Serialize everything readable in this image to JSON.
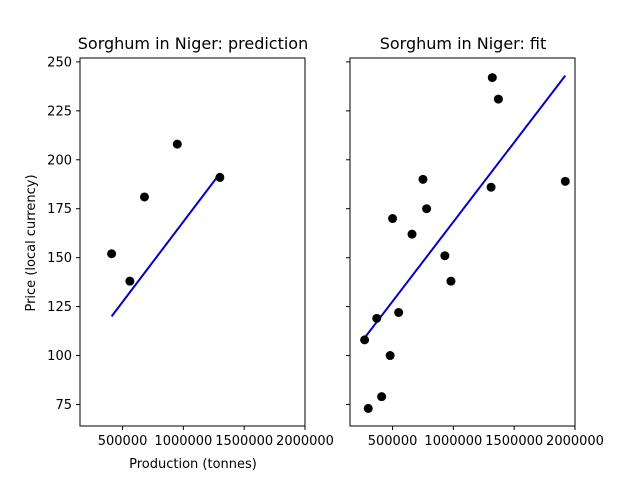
{
  "chart_data": [
    {
      "type": "scatter",
      "title": "Sorghum in Niger: prediction",
      "xlabel": "Production (tonnes)",
      "ylabel": "Price (local currency)",
      "xlim": [
        150000,
        2000000
      ],
      "ylim": [
        64,
        252
      ],
      "xticks": [
        500000,
        1000000,
        1500000,
        2000000
      ],
      "xtick_labels": [
        "500000",
        "1000000",
        "1500000",
        "2000000"
      ],
      "yticks": [
        75,
        100,
        125,
        150,
        175,
        200,
        225,
        250
      ],
      "ytick_labels": [
        "75",
        "100",
        "125",
        "150",
        "175",
        "200",
        "225",
        "250"
      ],
      "grid": false,
      "points": [
        {
          "x": 410000,
          "y": 152
        },
        {
          "x": 560000,
          "y": 138
        },
        {
          "x": 680000,
          "y": 181
        },
        {
          "x": 950000,
          "y": 208
        },
        {
          "x": 1300000,
          "y": 191
        }
      ],
      "fit_line": {
        "x": [
          410000,
          1300000
        ],
        "y": [
          120,
          193
        ],
        "color": "#0000cc"
      },
      "point_color": "#000000"
    },
    {
      "type": "scatter",
      "title": "Sorghum in Niger: fit",
      "xlabel": "",
      "ylabel": "",
      "xlim": [
        150000,
        2000000
      ],
      "ylim": [
        64,
        252
      ],
      "xticks": [
        500000,
        1000000,
        1500000,
        2000000
      ],
      "xtick_labels": [
        "500000",
        "1000000",
        "1500000",
        "2000000"
      ],
      "yticks": [
        75,
        100,
        125,
        150,
        175,
        200,
        225,
        250
      ],
      "ytick_labels": [],
      "grid": false,
      "points": [
        {
          "x": 270000,
          "y": 108
        },
        {
          "x": 300000,
          "y": 73
        },
        {
          "x": 370000,
          "y": 119
        },
        {
          "x": 410000,
          "y": 79
        },
        {
          "x": 480000,
          "y": 100
        },
        {
          "x": 500000,
          "y": 170
        },
        {
          "x": 550000,
          "y": 122
        },
        {
          "x": 660000,
          "y": 162
        },
        {
          "x": 750000,
          "y": 190
        },
        {
          "x": 780000,
          "y": 175
        },
        {
          "x": 930000,
          "y": 151
        },
        {
          "x": 980000,
          "y": 138
        },
        {
          "x": 1310000,
          "y": 186
        },
        {
          "x": 1320000,
          "y": 242
        },
        {
          "x": 1370000,
          "y": 231
        },
        {
          "x": 1920000,
          "y": 189
        }
      ],
      "fit_line": {
        "x": [
          270000,
          1920000
        ],
        "y": [
          109,
          243
        ],
        "color": "#0000cc"
      },
      "point_color": "#000000"
    }
  ]
}
